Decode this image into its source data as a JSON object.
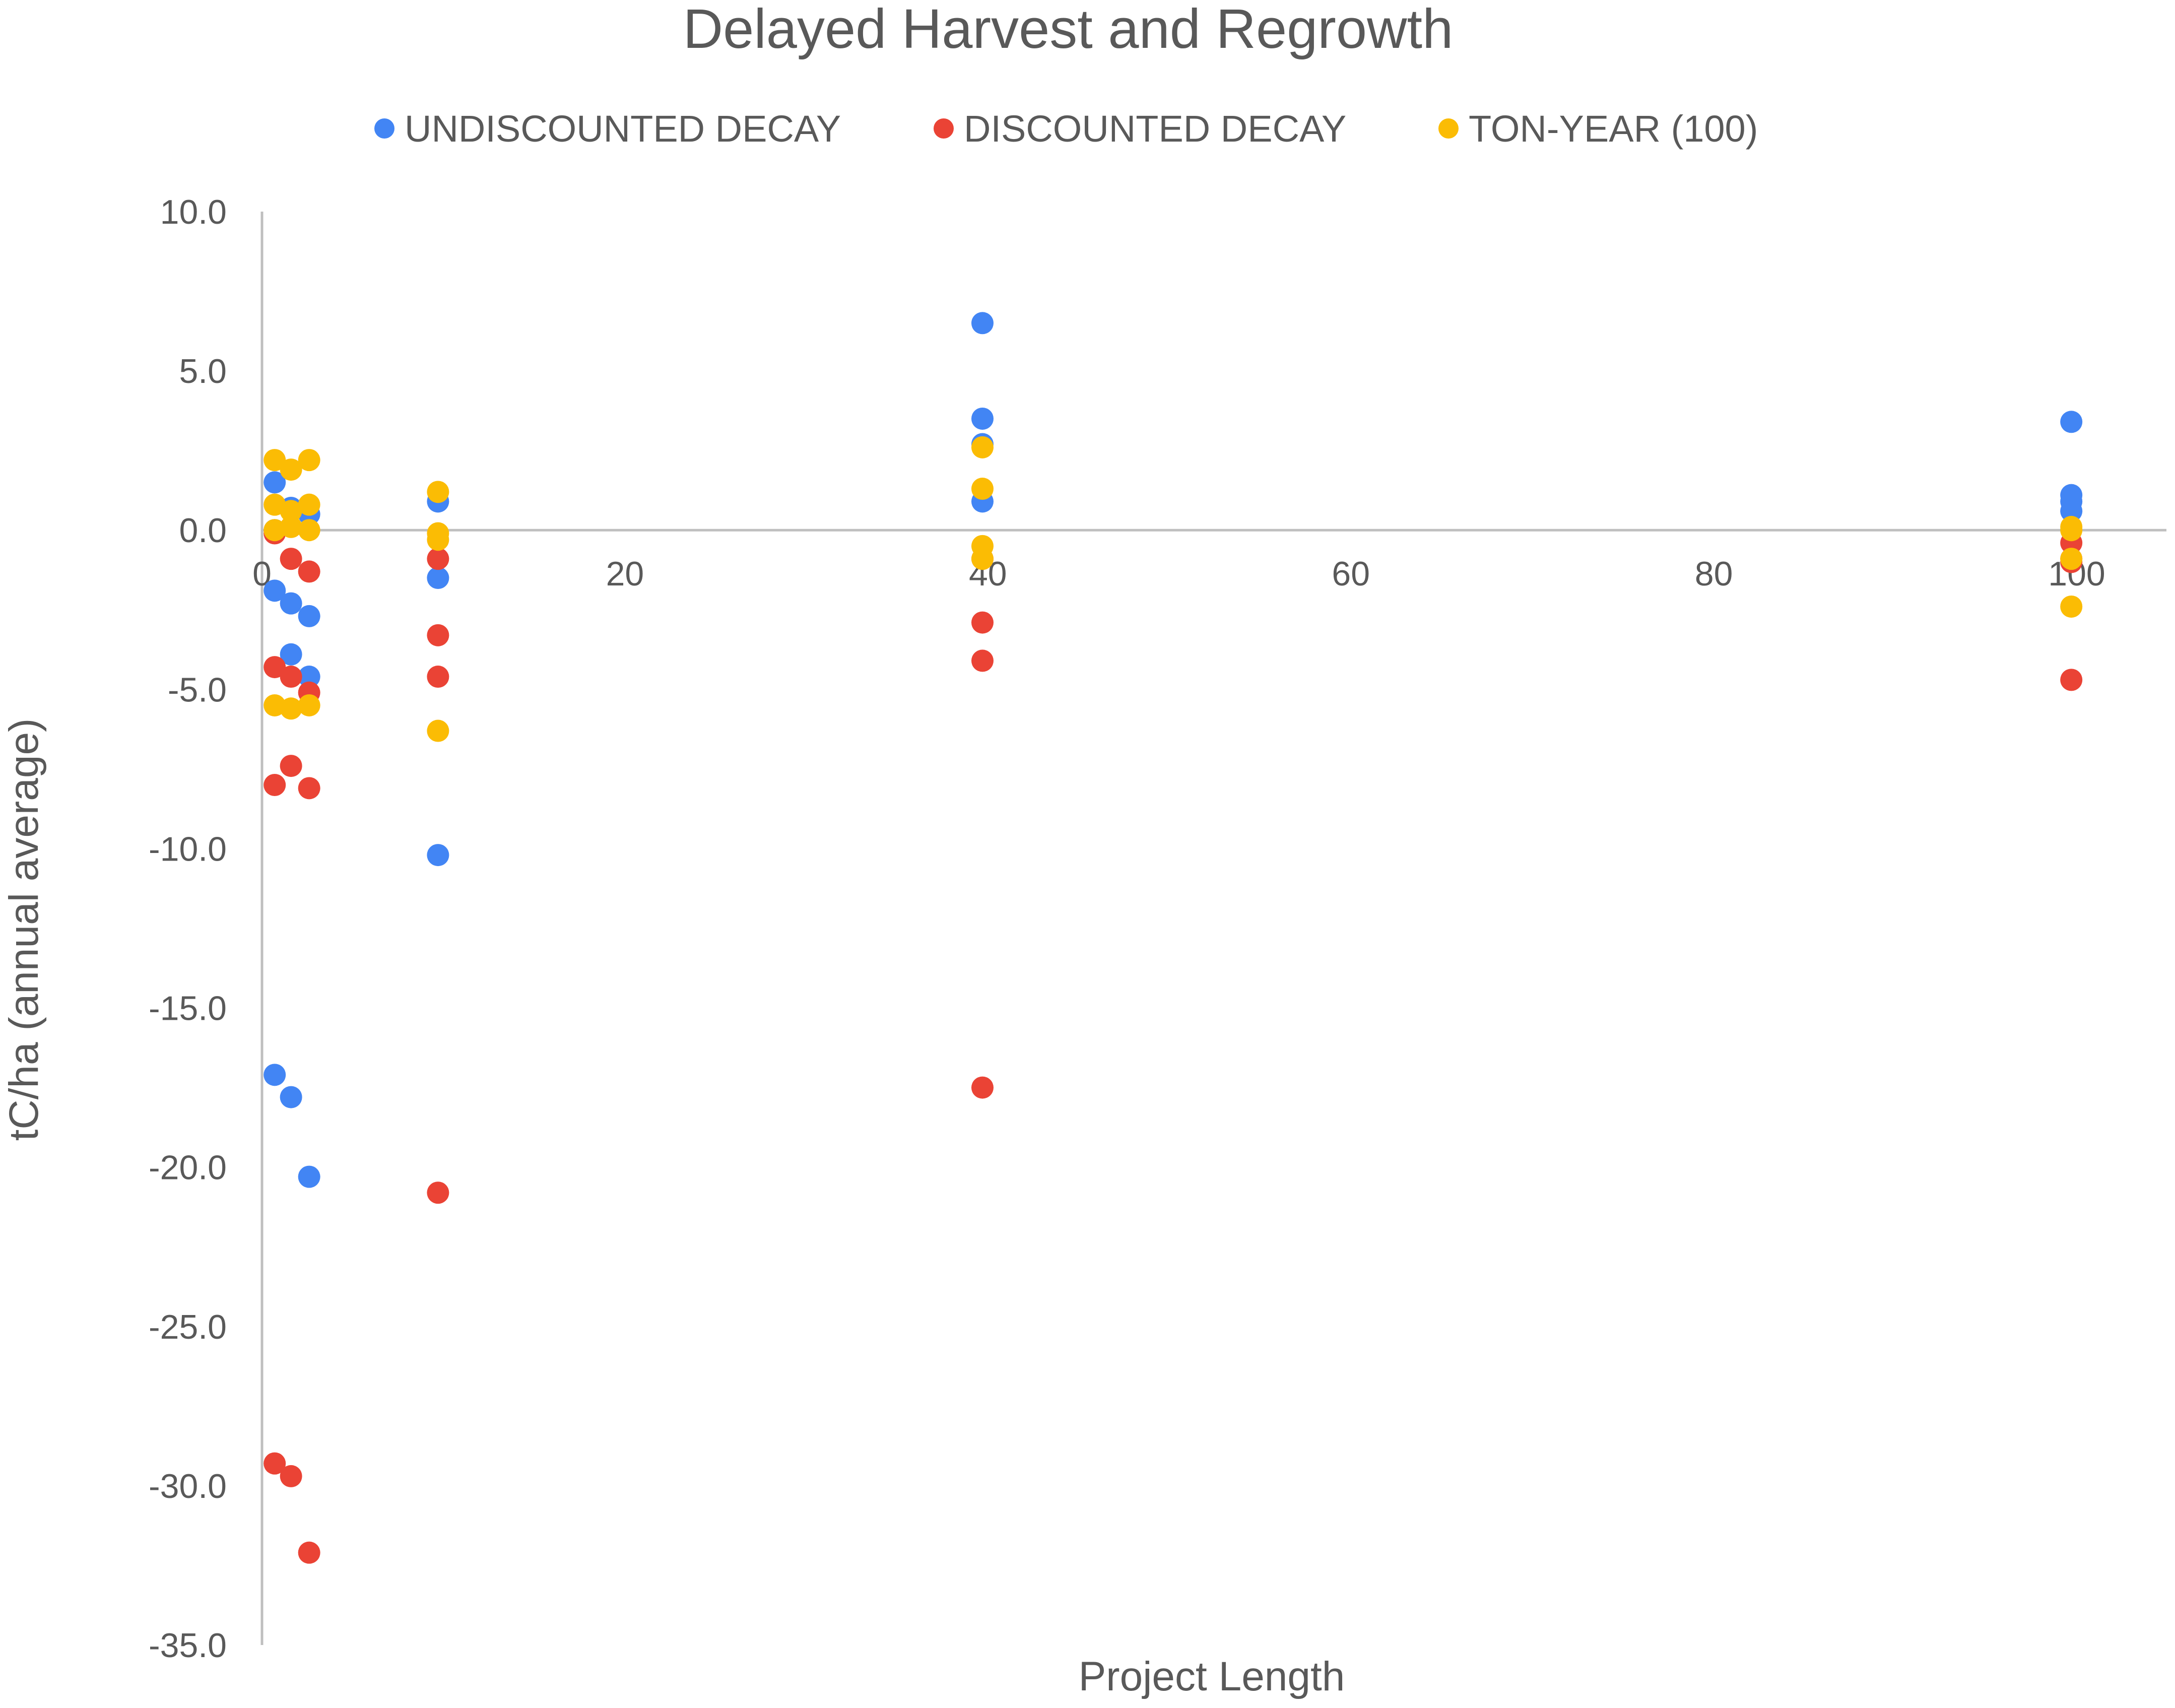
{
  "chart_data": {
    "type": "scatter",
    "title": "Delayed Harvest and Regrowth",
    "xlabel": "Project Length",
    "ylabel": "tC/ha (annual average)",
    "xlim": [
      0,
      105
    ],
    "ylim": [
      -35,
      10
    ],
    "x_ticks": [
      0,
      20,
      40,
      60,
      80,
      100
    ],
    "x_tick_labels": [
      "0",
      "20",
      "40",
      "60",
      "80",
      "100"
    ],
    "y_ticks": [
      10,
      5,
      0,
      -5,
      -10,
      -15,
      -20,
      -25,
      -30,
      -35
    ],
    "y_tick_labels": [
      "10.0",
      "5.0",
      "0.0",
      "-5.0",
      "-10.0",
      "-15.0",
      "-20.0",
      "-25.0",
      "-30.0",
      "-35.0"
    ],
    "legend_position": "top",
    "grid": false,
    "series": [
      {
        "name": "UNDISCOUNTED DECAY",
        "color": "#4285f4",
        "points": [
          [
            0.7,
            1.5
          ],
          [
            0.7,
            0.0
          ],
          [
            0.7,
            -1.9
          ],
          [
            0.7,
            -17.1
          ],
          [
            1.6,
            0.7
          ],
          [
            1.6,
            -2.3
          ],
          [
            1.6,
            -3.9
          ],
          [
            1.6,
            -17.8
          ],
          [
            2.6,
            0.5
          ],
          [
            2.6,
            -2.7
          ],
          [
            2.6,
            -4.6
          ],
          [
            2.6,
            -20.3
          ],
          [
            9.7,
            0.9
          ],
          [
            9.7,
            -1.5
          ],
          [
            9.7,
            -10.2
          ],
          [
            39.7,
            6.5
          ],
          [
            39.7,
            3.5
          ],
          [
            39.7,
            2.7
          ],
          [
            39.7,
            0.9
          ],
          [
            99.7,
            3.4
          ],
          [
            99.7,
            1.1
          ],
          [
            99.7,
            0.9
          ],
          [
            99.7,
            0.6
          ]
        ]
      },
      {
        "name": "DISCOUNTED DECAY",
        "color": "#ea4335",
        "points": [
          [
            0.7,
            -0.1
          ],
          [
            0.7,
            -4.3
          ],
          [
            0.7,
            -8.0
          ],
          [
            0.7,
            -29.3
          ],
          [
            1.6,
            -0.9
          ],
          [
            1.6,
            -4.6
          ],
          [
            1.6,
            -7.4
          ],
          [
            1.6,
            -29.7
          ],
          [
            2.6,
            -1.3
          ],
          [
            2.6,
            -5.1
          ],
          [
            2.6,
            -8.1
          ],
          [
            2.6,
            -32.1
          ],
          [
            9.7,
            -0.9
          ],
          [
            9.7,
            -3.3
          ],
          [
            9.7,
            -4.6
          ],
          [
            9.7,
            -20.8
          ],
          [
            39.7,
            -0.9
          ],
          [
            39.7,
            -2.9
          ],
          [
            39.7,
            -4.1
          ],
          [
            39.7,
            -17.5
          ],
          [
            99.7,
            -0.4
          ],
          [
            99.7,
            -0.9
          ],
          [
            99.7,
            -1.0
          ],
          [
            99.7,
            -4.7
          ]
        ]
      },
      {
        "name": "TON-YEAR (100)",
        "color": "#fbbc04",
        "points": [
          [
            0.7,
            2.2
          ],
          [
            0.7,
            0.8
          ],
          [
            0.7,
            0.0
          ],
          [
            0.7,
            -5.5
          ],
          [
            1.6,
            1.9
          ],
          [
            1.6,
            0.6
          ],
          [
            1.6,
            0.1
          ],
          [
            1.6,
            -5.6
          ],
          [
            2.6,
            2.2
          ],
          [
            2.6,
            0.8
          ],
          [
            2.6,
            0.0
          ],
          [
            2.6,
            -5.5
          ],
          [
            9.7,
            1.2
          ],
          [
            9.7,
            -0.1
          ],
          [
            9.7,
            -0.3
          ],
          [
            9.7,
            -6.3
          ],
          [
            39.7,
            2.6
          ],
          [
            39.7,
            1.3
          ],
          [
            39.7,
            -0.5
          ],
          [
            39.7,
            -0.9
          ],
          [
            99.7,
            0.1
          ],
          [
            99.7,
            0.0
          ],
          [
            99.7,
            -0.9
          ],
          [
            99.7,
            -2.4
          ]
        ]
      }
    ]
  }
}
